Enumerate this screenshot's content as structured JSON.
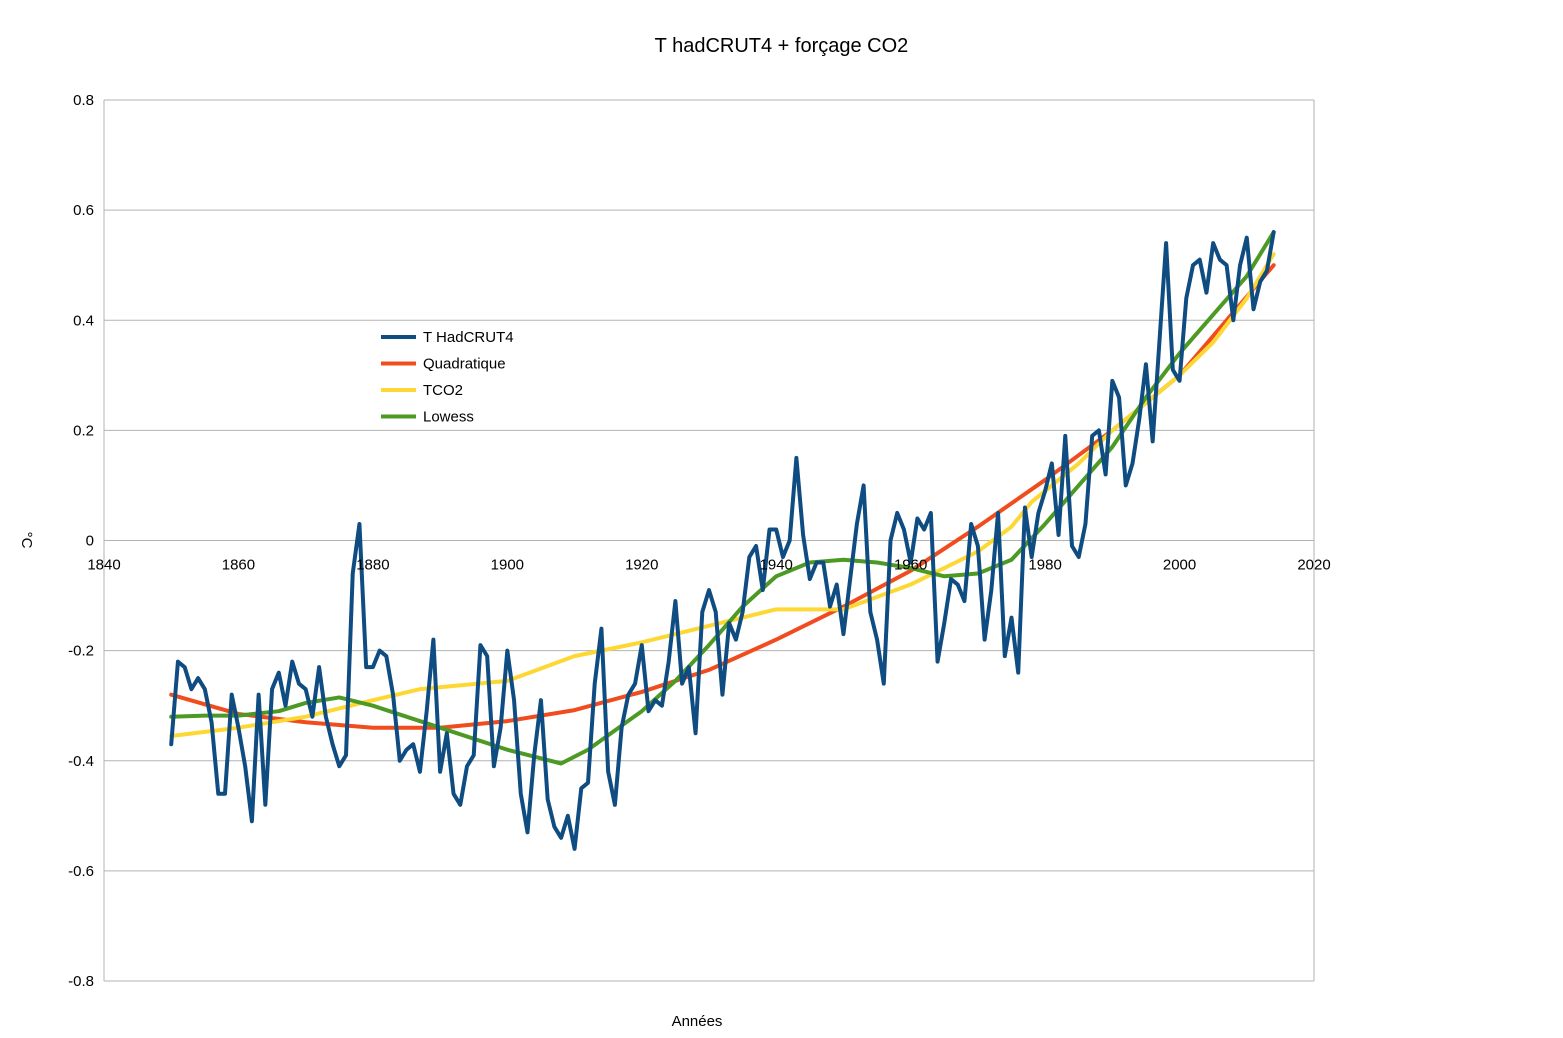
{
  "chart_data": {
    "type": "line",
    "title": "T hadCRUT4 + forçage CO2",
    "xlabel": "Années",
    "ylabel": "°C",
    "xlim": [
      1840,
      2020
    ],
    "ylim": [
      -0.8,
      0.8
    ],
    "x_ticks": [
      1840,
      1860,
      1880,
      1900,
      1920,
      1940,
      1960,
      1980,
      2000,
      2020
    ],
    "y_ticks": [
      0.8,
      0.6,
      0.4,
      0.2,
      0,
      -0.2,
      -0.4,
      -0.6,
      -0.8
    ],
    "x_tick_labels": [
      "1840",
      "1860",
      "1880",
      "1900",
      "1920",
      "1940",
      "1960",
      "1980",
      "2000",
      "2020"
    ],
    "y_tick_labels": [
      "0.8",
      "0.6",
      "0.4",
      "0.2",
      "0",
      "-0.2",
      "-0.4",
      "-0.6",
      "-0.8"
    ],
    "grid": true,
    "legend_position": "upper-left-inside",
    "series": [
      {
        "name": "T HadCRUT4",
        "color": "#0f4c81",
        "x_start": 1850,
        "values": [
          -0.37,
          -0.22,
          -0.23,
          -0.27,
          -0.25,
          -0.27,
          -0.33,
          -0.46,
          -0.46,
          -0.28,
          -0.34,
          -0.41,
          -0.51,
          -0.28,
          -0.48,
          -0.27,
          -0.24,
          -0.3,
          -0.22,
          -0.26,
          -0.27,
          -0.32,
          -0.23,
          -0.32,
          -0.37,
          -0.41,
          -0.39,
          -0.06,
          0.03,
          -0.23,
          -0.23,
          -0.2,
          -0.21,
          -0.28,
          -0.4,
          -0.38,
          -0.37,
          -0.42,
          -0.31,
          -0.18,
          -0.42,
          -0.35,
          -0.46,
          -0.48,
          -0.41,
          -0.39,
          -0.19,
          -0.21,
          -0.41,
          -0.34,
          -0.2,
          -0.29,
          -0.46,
          -0.53,
          -0.39,
          -0.29,
          -0.47,
          -0.52,
          -0.54,
          -0.5,
          -0.56,
          -0.45,
          -0.44,
          -0.26,
          -0.16,
          -0.42,
          -0.48,
          -0.34,
          -0.28,
          -0.26,
          -0.19,
          -0.31,
          -0.29,
          -0.3,
          -0.22,
          -0.11,
          -0.26,
          -0.23,
          -0.35,
          -0.13,
          -0.09,
          -0.13,
          -0.28,
          -0.15,
          -0.18,
          -0.13,
          -0.03,
          -0.01,
          -0.09,
          0.02,
          0.02,
          -0.03,
          0.0,
          0.15,
          0.01,
          -0.07,
          -0.04,
          -0.04,
          -0.12,
          -0.08,
          -0.17,
          -0.07,
          0.03,
          0.1,
          -0.13,
          -0.18,
          -0.26,
          0.0,
          0.05,
          0.02,
          -0.04,
          0.04,
          0.02,
          0.05,
          -0.22,
          -0.15,
          -0.07,
          -0.08,
          -0.11,
          0.03,
          -0.01,
          -0.18,
          -0.09,
          0.05,
          -0.21,
          -0.14,
          -0.24,
          0.06,
          -0.03,
          0.05,
          0.09,
          0.14,
          0.01,
          0.19,
          -0.01,
          -0.03,
          0.03,
          0.19,
          0.2,
          0.12,
          0.29,
          0.26,
          0.1,
          0.14,
          0.22,
          0.32,
          0.18,
          0.36,
          0.54,
          0.31,
          0.29,
          0.44,
          0.5,
          0.51,
          0.45,
          0.54,
          0.51,
          0.5,
          0.4,
          0.5,
          0.55,
          0.42,
          0.47,
          0.49,
          0.56
        ]
      },
      {
        "name": "Quadratique",
        "color": "#f14c1e",
        "points": [
          [
            1850,
            -0.28
          ],
          [
            1860,
            -0.315
          ],
          [
            1870,
            -0.33
          ],
          [
            1880,
            -0.34
          ],
          [
            1890,
            -0.34
          ],
          [
            1900,
            -0.328
          ],
          [
            1910,
            -0.308
          ],
          [
            1920,
            -0.275
          ],
          [
            1930,
            -0.235
          ],
          [
            1940,
            -0.18
          ],
          [
            1950,
            -0.12
          ],
          [
            1960,
            -0.055
          ],
          [
            1970,
            0.025
          ],
          [
            1980,
            0.11
          ],
          [
            1990,
            0.2
          ],
          [
            2000,
            0.3
          ],
          [
            2014,
            0.5
          ]
        ]
      },
      {
        "name": "TCO2",
        "color": "#fdd835",
        "points": [
          [
            1850,
            -0.355
          ],
          [
            1860,
            -0.34
          ],
          [
            1870,
            -0.32
          ],
          [
            1880,
            -0.29
          ],
          [
            1887,
            -0.27
          ],
          [
            1900,
            -0.255
          ],
          [
            1910,
            -0.21
          ],
          [
            1920,
            -0.185
          ],
          [
            1930,
            -0.155
          ],
          [
            1940,
            -0.125
          ],
          [
            1950,
            -0.125
          ],
          [
            1960,
            -0.08
          ],
          [
            1970,
            -0.02
          ],
          [
            1975,
            0.025
          ],
          [
            1978,
            0.07
          ],
          [
            1985,
            0.14
          ],
          [
            1990,
            0.2
          ],
          [
            2000,
            0.3
          ],
          [
            2005,
            0.36
          ],
          [
            2010,
            0.44
          ],
          [
            2014,
            0.52
          ]
        ]
      },
      {
        "name": "Lowess",
        "color": "#4c9a24",
        "points": [
          [
            1850,
            -0.32
          ],
          [
            1855,
            -0.318
          ],
          [
            1860,
            -0.318
          ],
          [
            1866,
            -0.31
          ],
          [
            1870,
            -0.295
          ],
          [
            1875,
            -0.285
          ],
          [
            1880,
            -0.3
          ],
          [
            1890,
            -0.34
          ],
          [
            1900,
            -0.38
          ],
          [
            1908,
            -0.405
          ],
          [
            1912,
            -0.38
          ],
          [
            1920,
            -0.31
          ],
          [
            1925,
            -0.255
          ],
          [
            1930,
            -0.19
          ],
          [
            1935,
            -0.12
          ],
          [
            1940,
            -0.065
          ],
          [
            1945,
            -0.04
          ],
          [
            1950,
            -0.035
          ],
          [
            1955,
            -0.04
          ],
          [
            1960,
            -0.05
          ],
          [
            1965,
            -0.065
          ],
          [
            1970,
            -0.06
          ],
          [
            1975,
            -0.035
          ],
          [
            1980,
            0.03
          ],
          [
            1985,
            0.1
          ],
          [
            1990,
            0.17
          ],
          [
            1995,
            0.26
          ],
          [
            2000,
            0.34
          ],
          [
            2005,
            0.41
          ],
          [
            2010,
            0.48
          ],
          [
            2014,
            0.56
          ]
        ]
      }
    ]
  }
}
